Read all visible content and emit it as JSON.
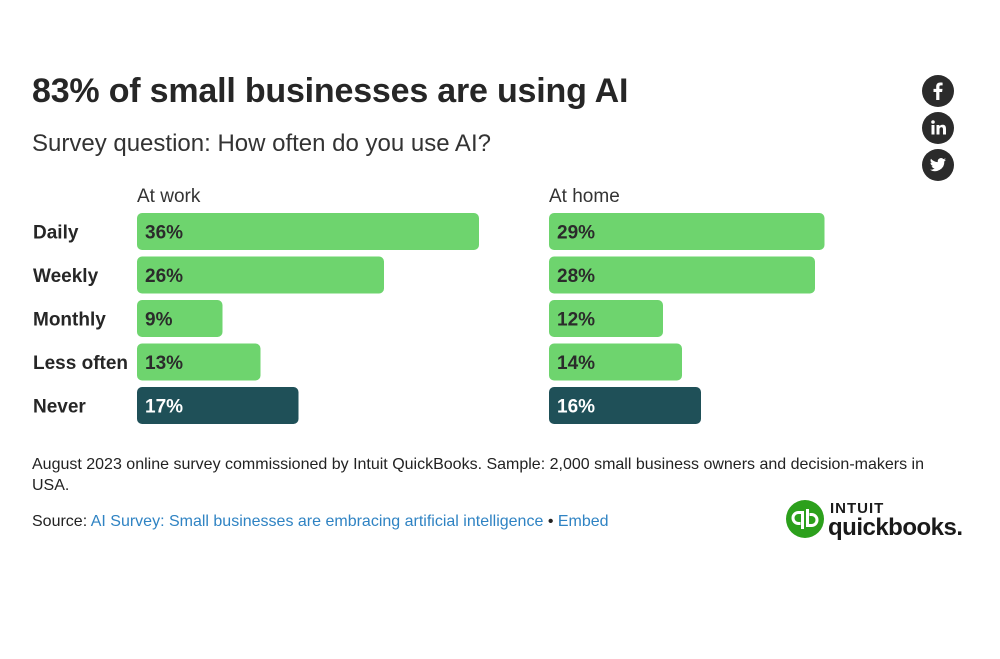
{
  "header": {
    "title": "83% of small businesses are using AI",
    "subtitle": "Survey question: How often do you use AI?"
  },
  "share": {
    "facebook_icon": "facebook-icon",
    "linkedin_icon": "linkedin-icon",
    "twitter_icon": "twitter-icon",
    "icon_bg": "#2b2b2b"
  },
  "chart_data": {
    "type": "bar",
    "orientation": "horizontal",
    "title": "83% of small businesses are using AI",
    "subtitle": "Survey question: How often do you use AI?",
    "categories": [
      "Daily",
      "Weekly",
      "Monthly",
      "Less often",
      "Never"
    ],
    "unit": "%",
    "xlim": [
      0,
      36
    ],
    "series": [
      {
        "name": "At work",
        "values": [
          36,
          26,
          9,
          13,
          17
        ]
      },
      {
        "name": "At home",
        "values": [
          29,
          28,
          12,
          14,
          16
        ]
      }
    ],
    "colors": {
      "use": "#6ed46e",
      "never": "#1f5058",
      "label_use": "#2b2b2b",
      "label_never": "#ffffff"
    }
  },
  "footer": {
    "note": "August 2023 online survey commissioned by Intuit QuickBooks. Sample: 2,000 small business owners and decision-makers in USA.",
    "source_label": "Source:",
    "source_link": "AI Survey: Small businesses are embracing artificial intelligence",
    "bullet": "•",
    "embed_link": "Embed",
    "link_color": "#2f83c3"
  },
  "brand": {
    "logo_top": "INTUIT",
    "logo_bottom": "quickbooks.",
    "color": "#2ca01c"
  }
}
